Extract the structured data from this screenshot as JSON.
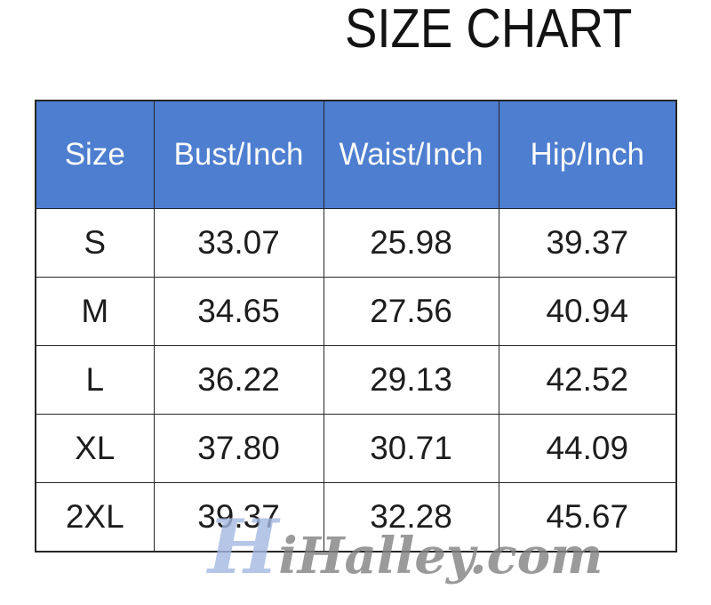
{
  "page": {
    "title": "SIZE CHART"
  },
  "table": {
    "columns": [
      "Size",
      "Bust/Inch",
      "Waist/Inch",
      "Hip/Inch"
    ],
    "rows": [
      [
        "S",
        "33.07",
        "25.98",
        "39.37"
      ],
      [
        "M",
        "34.65",
        "27.56",
        "40.94"
      ],
      [
        "L",
        "36.22",
        "29.13",
        "42.52"
      ],
      [
        "XL",
        "37.80",
        "30.71",
        "44.09"
      ],
      [
        "2XL",
        "39.37",
        "32.28",
        "45.67"
      ]
    ]
  },
  "watermark": {
    "lead": "H",
    "rest": "iHalley.com"
  },
  "colors": {
    "header_bg": "#4d7ed0",
    "header_text": "#fafafa",
    "border": "#262626",
    "body_text": "#1d1d1d",
    "watermark_gray": "#828282",
    "watermark_blue": "#a3b8e2"
  },
  "chart_data": {
    "type": "table",
    "title": "SIZE CHART",
    "columns": [
      "Size",
      "Bust/Inch",
      "Waist/Inch",
      "Hip/Inch"
    ],
    "rows": [
      [
        "S",
        33.07,
        25.98,
        39.37
      ],
      [
        "M",
        34.65,
        27.56,
        40.94
      ],
      [
        "L",
        36.22,
        29.13,
        42.52
      ],
      [
        "XL",
        37.8,
        30.71,
        44.09
      ],
      [
        "2XL",
        39.37,
        32.28,
        45.67
      ]
    ],
    "units": "inches",
    "layout": {
      "header_fill": "#4d7ed0",
      "grid": true
    }
  }
}
